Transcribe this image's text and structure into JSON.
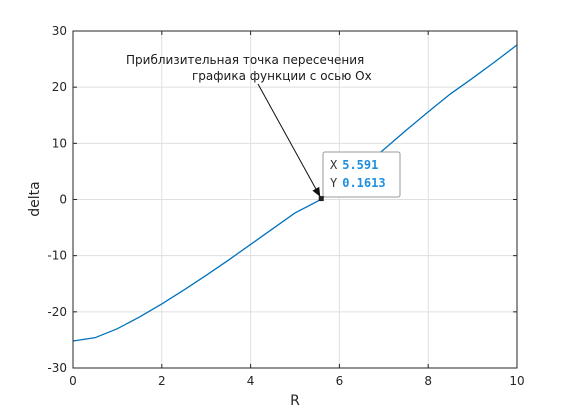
{
  "chart_data": {
    "type": "line",
    "xlabel": "R",
    "ylabel": "delta",
    "xlim": [
      0,
      10
    ],
    "ylim": [
      -30,
      30
    ],
    "grid": true,
    "x_ticks": [
      0,
      2,
      4,
      6,
      8,
      10
    ],
    "y_ticks": [
      -30,
      -20,
      -10,
      0,
      10,
      20,
      30
    ],
    "x_tick_labels": [
      "0",
      "2",
      "4",
      "6",
      "8",
      "10"
    ],
    "y_tick_labels": [
      "-30",
      "-20",
      "-10",
      "0",
      "10",
      "20",
      "30"
    ],
    "series": [
      {
        "color": "#0072bd",
        "x": [
          0,
          0.5,
          1,
          1.5,
          2,
          2.5,
          3,
          3.5,
          4,
          4.5,
          5,
          5.5,
          5.591,
          6,
          6.5,
          7,
          7.5,
          8,
          8.5,
          9,
          9.5,
          10
        ],
        "y": [
          -25.2,
          -24.6,
          -23.0,
          -20.9,
          -18.6,
          -16.1,
          -13.5,
          -10.8,
          -8.0,
          -5.2,
          -2.4,
          -0.35,
          0.1613,
          2.4,
          5.6,
          8.9,
          12.3,
          15.6,
          18.8,
          21.6,
          24.5,
          27.5
        ]
      }
    ],
    "annotation": {
      "line1": "Приблизительная точка пересечения",
      "line2": "графика функции с осью Ox",
      "target_x": 5.591,
      "target_y": 0.1613
    },
    "datatip": {
      "x_key": "X",
      "x_value": "5.591",
      "y_key": "Y",
      "y_value": "0.1613",
      "point_x": 5.591,
      "point_y": 0.1613
    }
  }
}
